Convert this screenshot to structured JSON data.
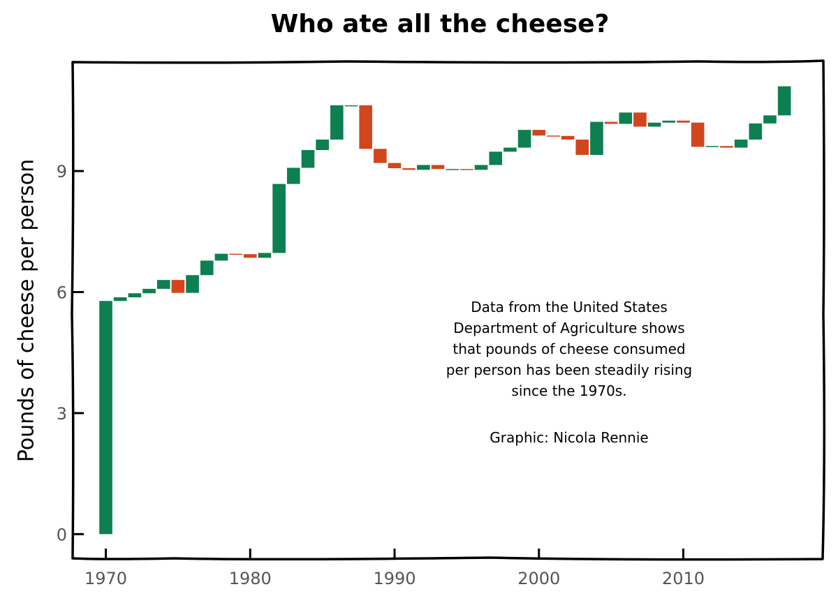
{
  "chart_data": {
    "type": "bar",
    "subtype": "waterfall",
    "title": "Who ate all the cheese?",
    "xlabel": "",
    "ylabel": "Pounds of cheese per person",
    "xlim": [
      1967.7,
      2019.7
    ],
    "ylim": [
      -0.6,
      11.7
    ],
    "x_ticks": [
      1970,
      1980,
      1990,
      2000,
      2010
    ],
    "y_ticks": [
      0,
      3,
      6,
      9
    ],
    "grid": false,
    "legend": "none",
    "colors": {
      "increase": "#0d7f50",
      "decrease": "#d2461e"
    },
    "years": [
      1970,
      1971,
      1972,
      1973,
      1974,
      1975,
      1976,
      1977,
      1978,
      1979,
      1980,
      1981,
      1982,
      1983,
      1984,
      1985,
      1986,
      1987,
      1988,
      1989,
      1990,
      1991,
      1992,
      1993,
      1994,
      1995,
      1996,
      1997,
      1998,
      1999,
      2000,
      2001,
      2002,
      2003,
      2004,
      2005,
      2006,
      2007,
      2008,
      2009,
      2010,
      2011,
      2012,
      2013,
      2014,
      2015,
      2016,
      2017
    ],
    "values": [
      5.78,
      5.87,
      5.97,
      6.08,
      6.3,
      5.98,
      6.42,
      6.78,
      6.95,
      6.94,
      6.85,
      6.97,
      8.68,
      9.08,
      9.52,
      9.78,
      10.63,
      10.63,
      9.55,
      9.2,
      9.07,
      9.03,
      9.15,
      9.05,
      9.05,
      9.03,
      9.15,
      9.48,
      9.58,
      10.02,
      9.88,
      9.87,
      9.78,
      9.4,
      10.22,
      10.17,
      10.45,
      10.1,
      10.2,
      10.25,
      10.2,
      9.6,
      9.62,
      9.58,
      9.78,
      10.18,
      10.38,
      11.1
    ]
  },
  "annotation": {
    "text": "Data from the United States\nDepartment of Agriculture shows\nthat pounds of cheese consumed\nper person has been steadily rising\nsince the 1970s.",
    "credit": "Graphic: Nicola Rennie"
  }
}
